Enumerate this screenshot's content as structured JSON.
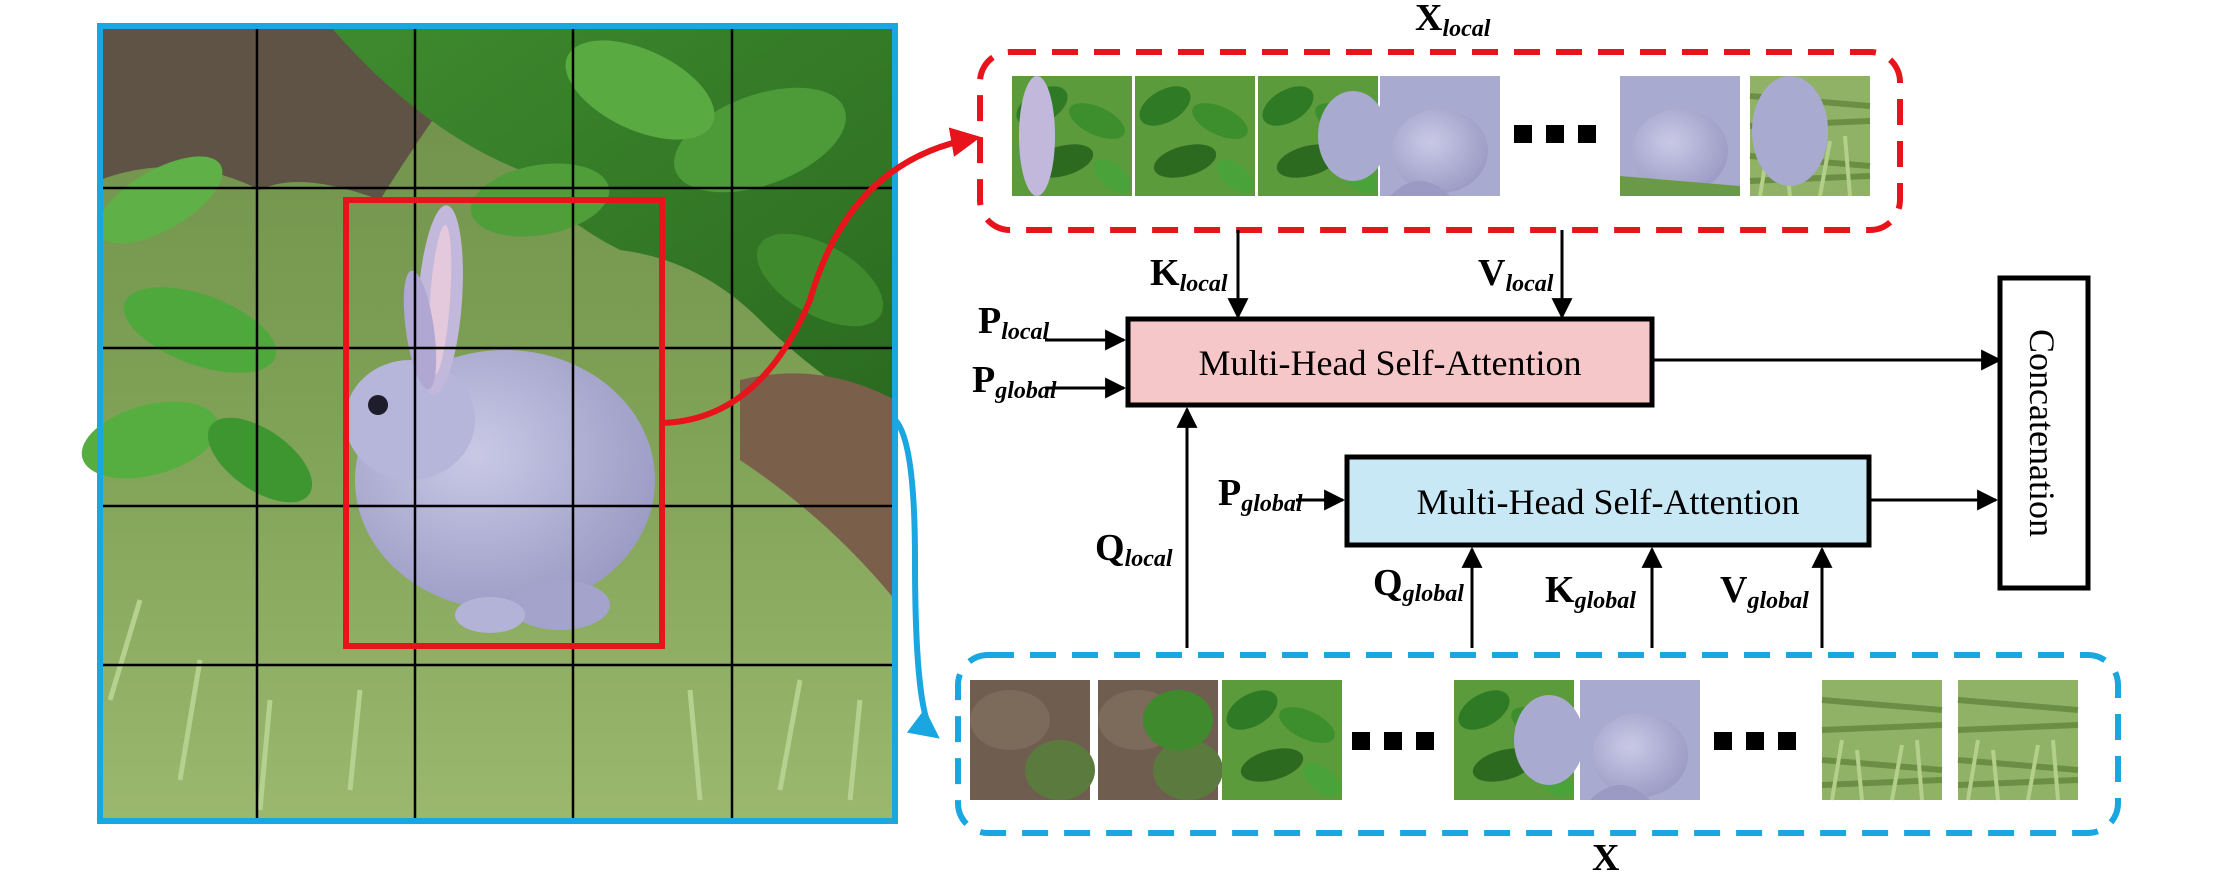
{
  "labels": {
    "x_local_main": "X",
    "x_local_sub": "local",
    "k_local_main": "K",
    "k_local_sub": "local",
    "v_local_main": "V",
    "v_local_sub": "local",
    "p_local_main": "P",
    "p_local_sub": "local",
    "p_global_main": "P",
    "p_global_sub": "global",
    "p_global2_main": "P",
    "p_global2_sub": "global",
    "q_local_main": "Q",
    "q_local_sub": "local",
    "q_global_main": "Q",
    "q_global_sub": "global",
    "k_global_main": "K",
    "k_global_sub": "global",
    "v_global_main": "V",
    "v_global_sub": "global",
    "x_main": "X"
  },
  "boxes": {
    "mhsa_local": "Multi-Head Self-Attention",
    "mhsa_global": "Multi-Head Self-Attention",
    "concat": "Concatenation"
  },
  "colors": {
    "local": "#e8141b",
    "global": "#1aa6e0",
    "mhsa_local_fill": "#f6c7c8",
    "mhsa_global_fill": "#c9e8f5"
  },
  "image_description_icon": "rabbit-photo"
}
